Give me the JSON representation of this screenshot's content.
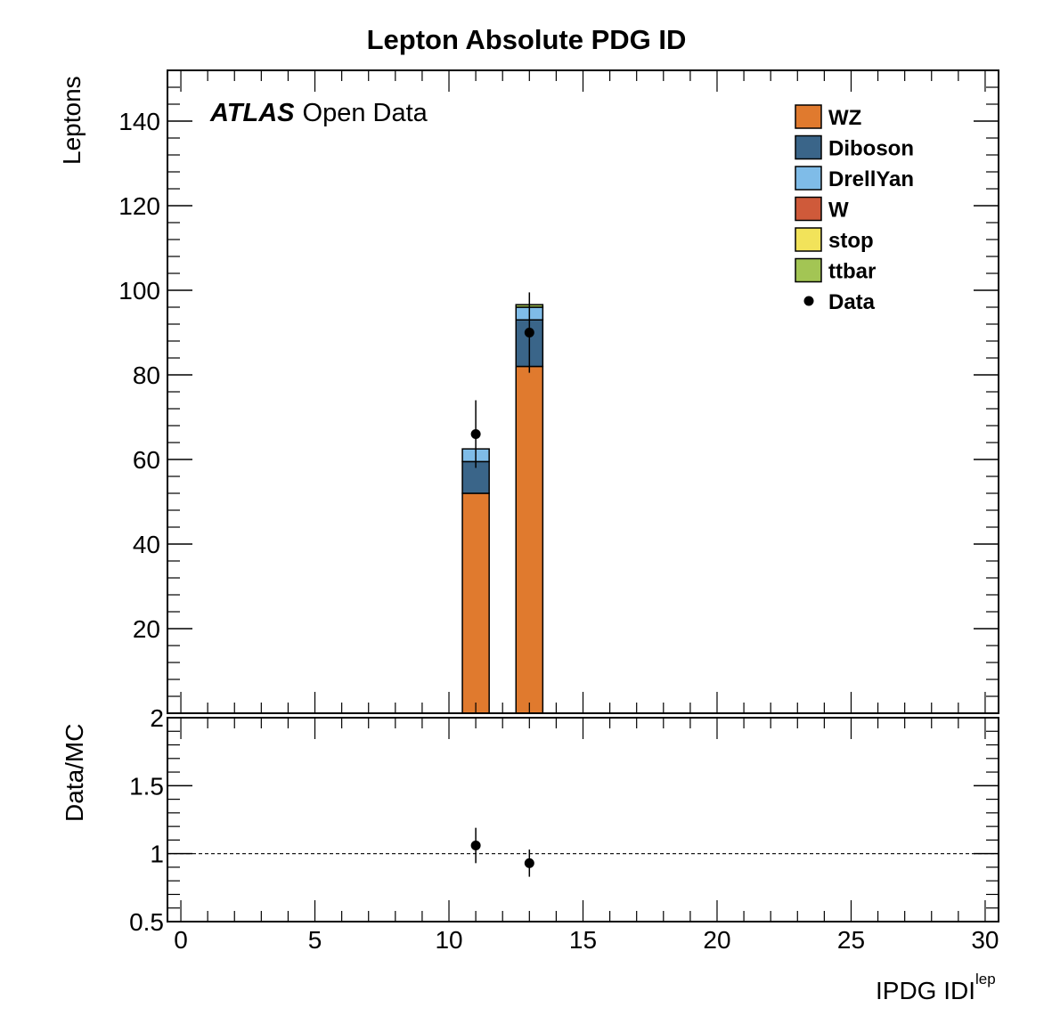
{
  "chart_data": [
    {
      "type": "bar",
      "stacked": true,
      "title": "Lepton Absolute PDG ID",
      "ylabel": "Leptons",
      "annotation": {
        "bold": "ATLAS",
        "rest": "Open Data"
      },
      "ylim": [
        0,
        152
      ],
      "xlim": [
        -0.5,
        30.5
      ],
      "yticks": [
        20,
        40,
        60,
        80,
        100,
        120,
        140
      ],
      "ytick_labels": [
        "20",
        "40",
        "60",
        "80",
        "100",
        "120",
        "140"
      ],
      "legend_position": "top-right",
      "bins": [
        {
          "low": 10.5,
          "high": 11.5,
          "center": 11
        },
        {
          "low": 12.5,
          "high": 13.5,
          "center": 13
        }
      ],
      "series": [
        {
          "name": "WZ",
          "color": "#e07a2e",
          "values": [
            52,
            82
          ]
        },
        {
          "name": "Diboson",
          "color": "#3a6589",
          "values": [
            7.5,
            11
          ]
        },
        {
          "name": "DrellYan",
          "color": "#7fbce8",
          "values": [
            3,
            3
          ]
        },
        {
          "name": "W",
          "color": "#cf5a3a",
          "values": [
            0,
            0
          ]
        },
        {
          "name": "stop",
          "color": "#f2e35a",
          "values": [
            0,
            0
          ]
        },
        {
          "name": "ttbar",
          "color": "#a3c554",
          "values": [
            0,
            0.6
          ]
        }
      ],
      "data": {
        "name": "Data",
        "x": [
          11,
          13
        ],
        "y": [
          66,
          90
        ],
        "yerr_low": [
          8,
          9.5
        ],
        "yerr_high": [
          8,
          9.5
        ]
      }
    },
    {
      "type": "scatter",
      "ylabel": "Data/MC",
      "xlabel": {
        "main": "IPDG IDI",
        "sup": "lep"
      },
      "ylim": [
        0.5,
        2
      ],
      "xlim": [
        -0.5,
        30.5
      ],
      "yticks": [
        0.5,
        1,
        1.5,
        2
      ],
      "ytick_labels": [
        "0.5",
        "1",
        "1.5",
        "2"
      ],
      "xticks": [
        0,
        5,
        10,
        15,
        20,
        25,
        30
      ],
      "xtick_labels": [
        "0",
        "5",
        "10",
        "15",
        "20",
        "25",
        "30"
      ],
      "reference_line": 1,
      "points": {
        "x": [
          11,
          13
        ],
        "y": [
          1.06,
          0.93
        ],
        "yerr_low": [
          0.13,
          0.1
        ],
        "yerr_high": [
          0.13,
          0.1
        ]
      }
    }
  ]
}
